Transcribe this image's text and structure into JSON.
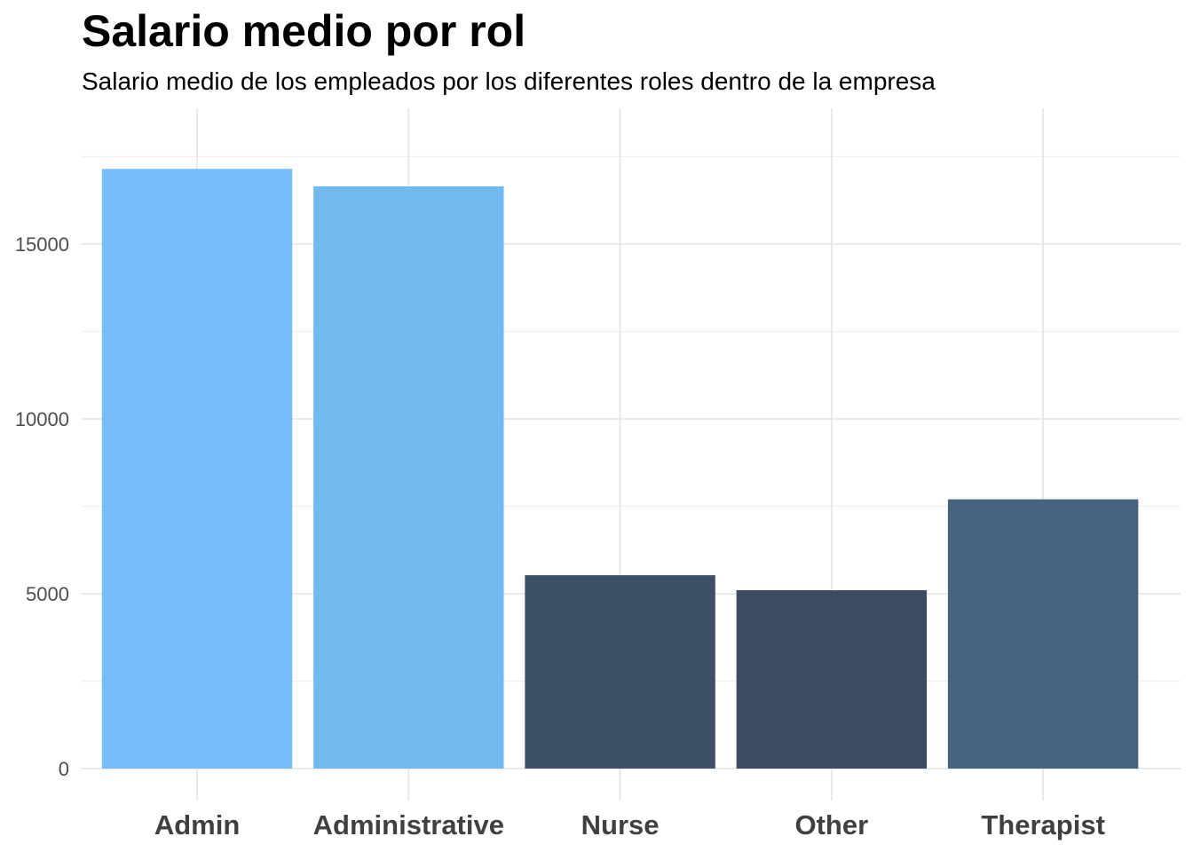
{
  "chart_data": {
    "type": "bar",
    "title": "Salario medio por rol",
    "subtitle": "Salario medio de los empleados por los diferentes roles dentro de la empresa",
    "xlabel": "",
    "ylabel": "",
    "categories": [
      "Admin",
      "Administrative",
      "Nurse",
      "Other",
      "Therapist"
    ],
    "values": [
      17150,
      16650,
      5530,
      5100,
      7700
    ],
    "bar_colors": [
      "#77BDF9",
      "#72B9F0",
      "#3D5068",
      "#3A4B63",
      "#466380"
    ],
    "ylim": [
      0,
      17600
    ],
    "yticks": [
      0,
      5000,
      10000,
      15000
    ],
    "ytick_labels": [
      "0",
      "5000",
      "10000",
      "15000"
    ],
    "grid": true,
    "legend": "none"
  }
}
